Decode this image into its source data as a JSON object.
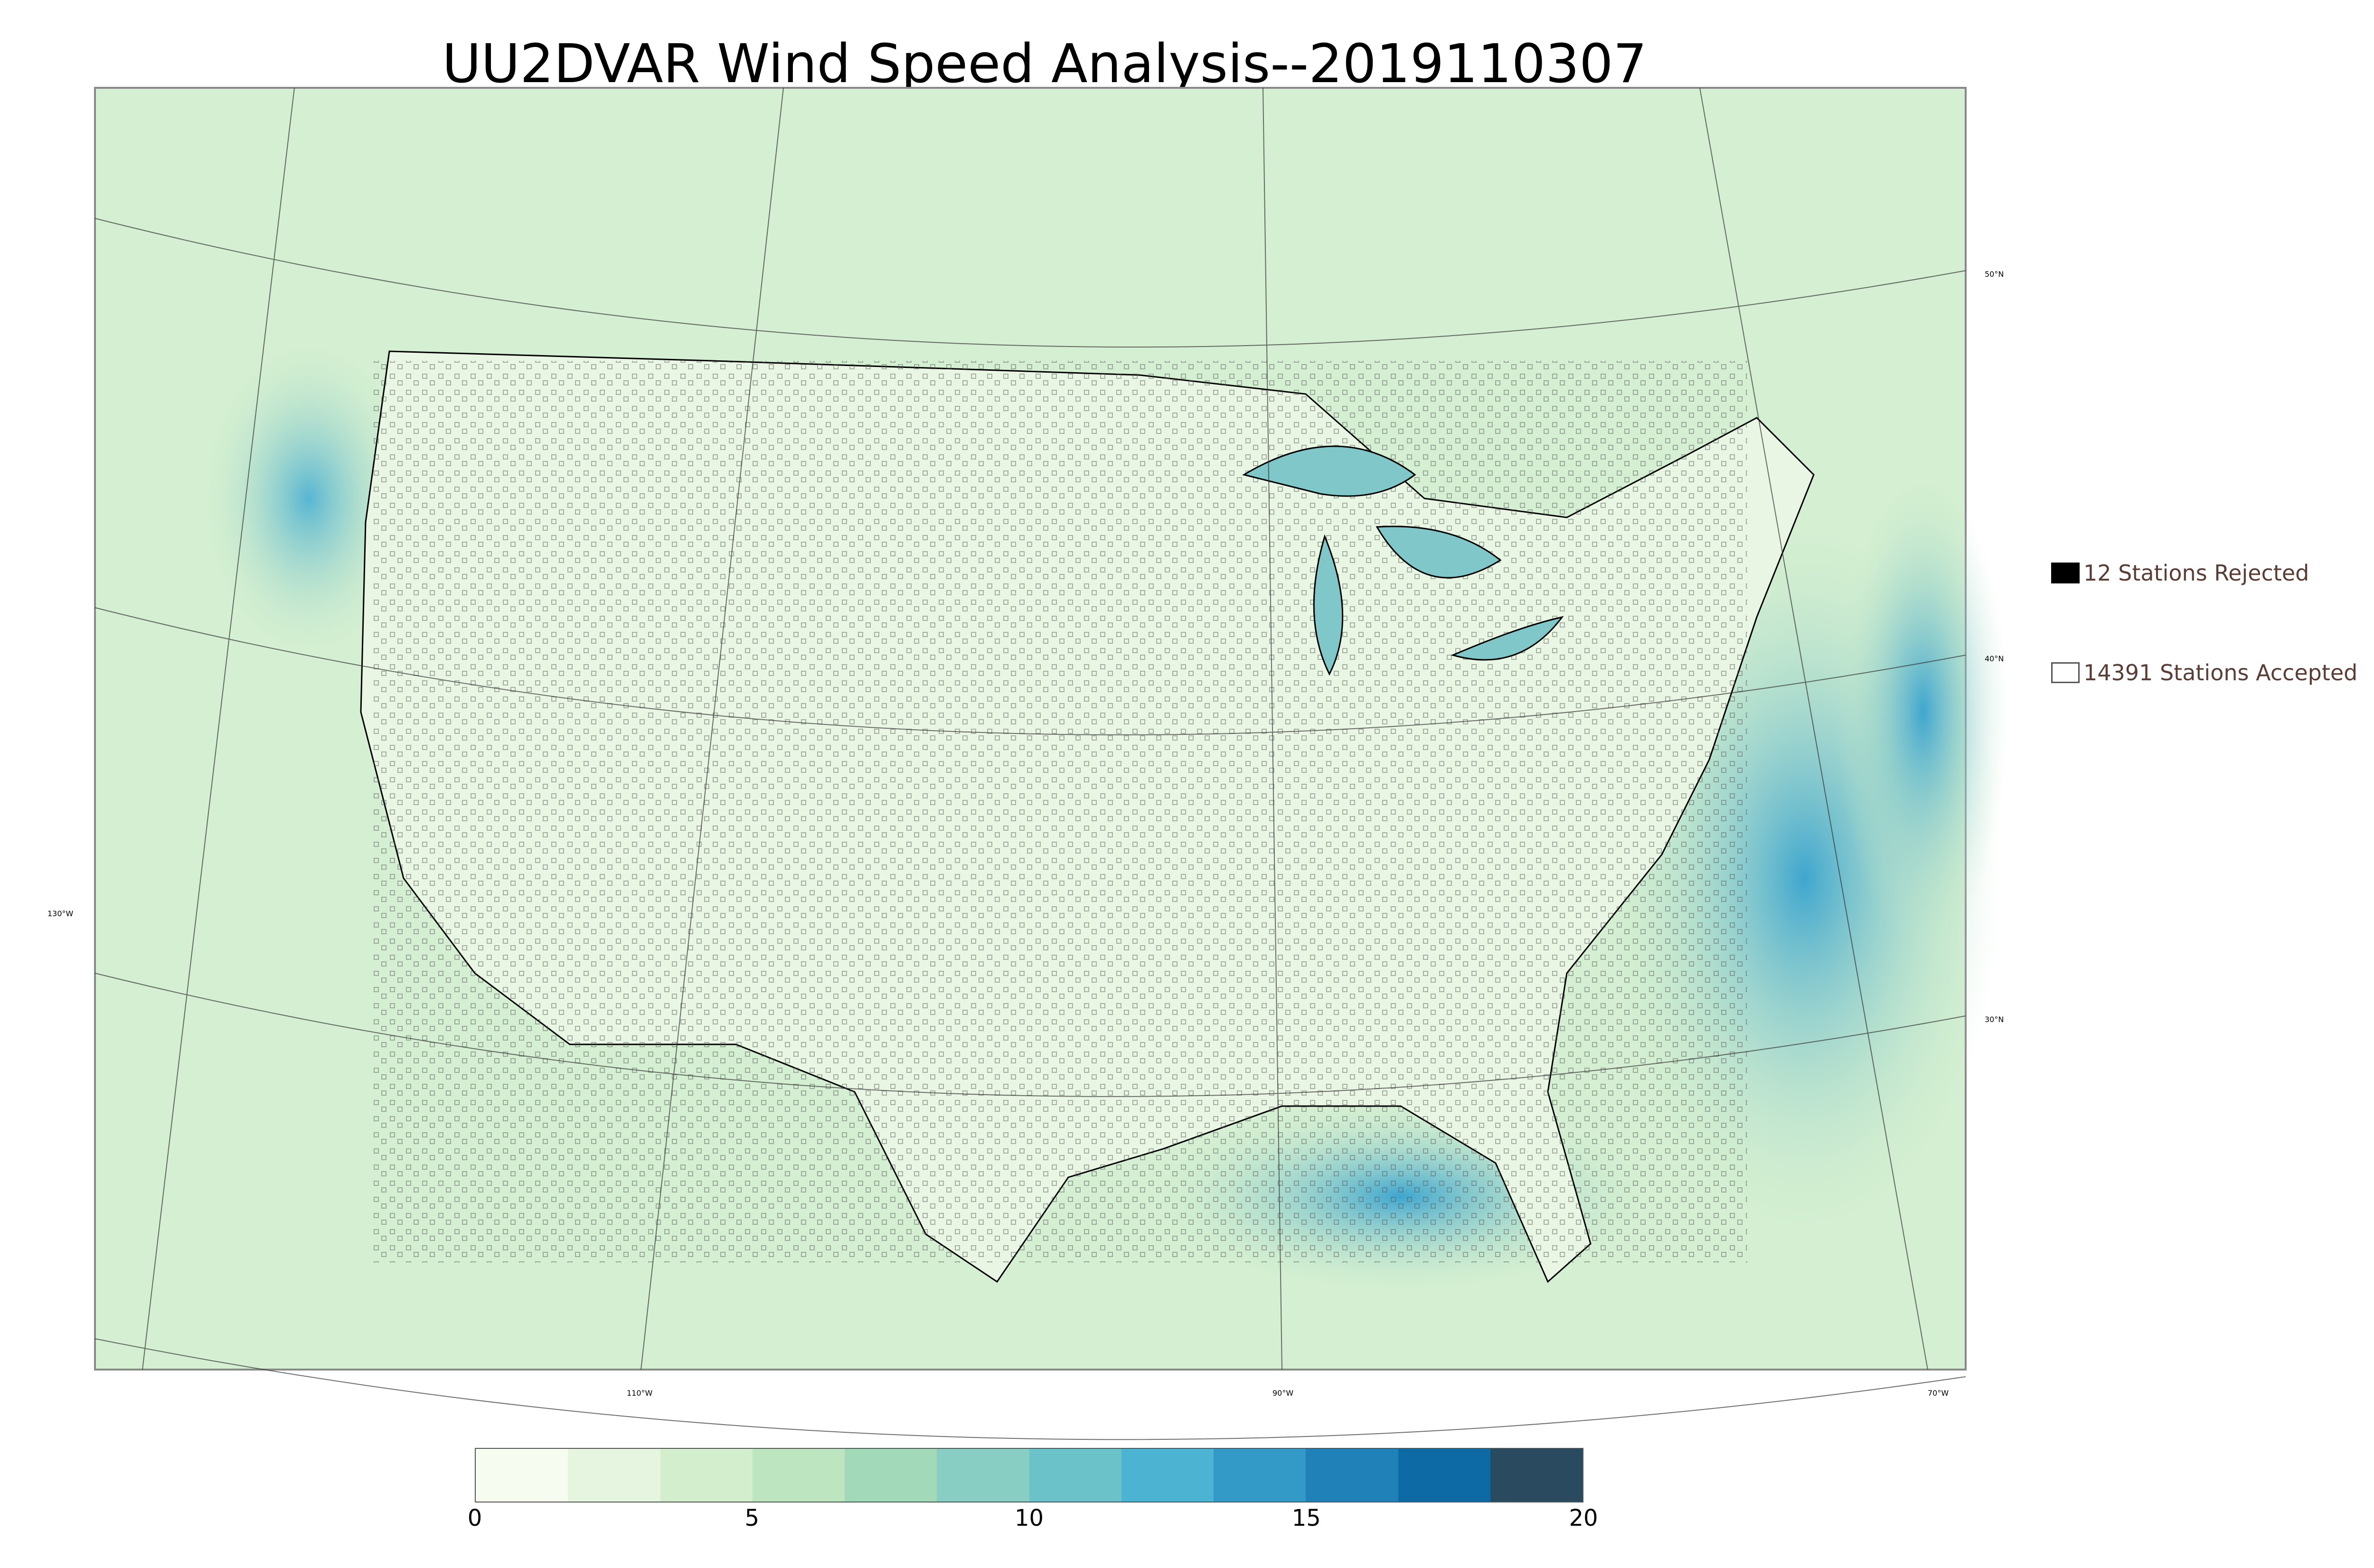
{
  "title": "UU2DVAR Wind Speed Analysis--2019110307",
  "legend": {
    "rejected": {
      "label": "12 Stations Rejected",
      "color": "#000000"
    },
    "accepted": {
      "label": "14391 Stations Accepted",
      "color": "#ffffff"
    }
  },
  "graticule_labels": {
    "lat_50": "50°N",
    "lat_40": "40°N",
    "lat_30": "30°N",
    "lon_130": "130°W",
    "lon_110": "110°W",
    "lon_90": "90°W",
    "lon_70": "70°W"
  },
  "colorbar": {
    "ticks": [
      "0",
      "5",
      "10",
      "15",
      "20"
    ],
    "colors": [
      "#f7fcf0",
      "#e5f5df",
      "#d3eecd",
      "#bde5bf",
      "#a2d9b8",
      "#88cec2",
      "#6cc2c9",
      "#4db3d3",
      "#3399c6",
      "#2081b9",
      "#0d6aa5",
      "#2a4a60"
    ]
  },
  "map_colors": {
    "land": "#e6f4de",
    "ocean": "#c6e8c6",
    "high_wind": "#3fa6cf",
    "coast": "#000000"
  }
}
